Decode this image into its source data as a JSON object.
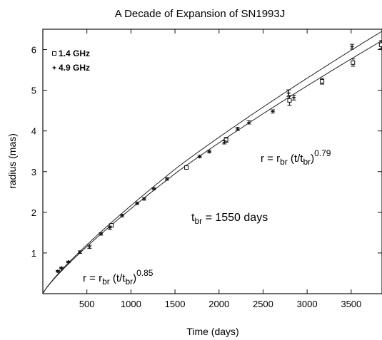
{
  "chart_data": {
    "type": "scatter",
    "title": "A Decade of Expansion of SN1993J",
    "xlabel": "Time (days)",
    "ylabel": "radius (mas)",
    "xlim": [
      0,
      3850
    ],
    "ylim": [
      0,
      6.5
    ],
    "x_ticks": [
      500,
      1000,
      1500,
      2000,
      2500,
      3000,
      3500
    ],
    "y_ticks": [
      1,
      2,
      3,
      4,
      5,
      6
    ],
    "grid": false,
    "legend_position": "top-left",
    "series": [
      {
        "name": "1.4 GHz",
        "marker": "open-square",
        "points": [
          {
            "x": 780,
            "y": 1.68,
            "err": 0.04
          },
          {
            "x": 1630,
            "y": 3.1,
            "err": 0.03
          },
          {
            "x": 2080,
            "y": 3.78,
            "err": 0.06
          },
          {
            "x": 2800,
            "y": 4.75,
            "err": 0.12
          },
          {
            "x": 3170,
            "y": 5.22,
            "err": 0.07
          },
          {
            "x": 3520,
            "y": 5.68,
            "err": 0.09
          },
          {
            "x": 3840,
            "y": 6.12,
            "err": 0.1
          }
        ]
      },
      {
        "name": "4.9 GHz",
        "marker": "plus",
        "points": [
          {
            "x": 170,
            "y": 0.55,
            "err": 0.02
          },
          {
            "x": 210,
            "y": 0.63,
            "err": 0.02
          },
          {
            "x": 290,
            "y": 0.78,
            "err": 0.02
          },
          {
            "x": 420,
            "y": 1.02,
            "err": 0.03
          },
          {
            "x": 530,
            "y": 1.15,
            "err": 0.04
          },
          {
            "x": 660,
            "y": 1.47,
            "err": 0.03
          },
          {
            "x": 760,
            "y": 1.62,
            "err": 0.04
          },
          {
            "x": 900,
            "y": 1.92,
            "err": 0.03
          },
          {
            "x": 1070,
            "y": 2.22,
            "err": 0.03
          },
          {
            "x": 1150,
            "y": 2.33,
            "err": 0.03
          },
          {
            "x": 1260,
            "y": 2.58,
            "err": 0.03
          },
          {
            "x": 1410,
            "y": 2.82,
            "err": 0.03
          },
          {
            "x": 1780,
            "y": 3.37,
            "err": 0.03
          },
          {
            "x": 1890,
            "y": 3.49,
            "err": 0.03
          },
          {
            "x": 2060,
            "y": 3.72,
            "err": 0.04
          },
          {
            "x": 2210,
            "y": 4.05,
            "err": 0.04
          },
          {
            "x": 2340,
            "y": 4.21,
            "err": 0.04
          },
          {
            "x": 2610,
            "y": 4.48,
            "err": 0.04
          },
          {
            "x": 2790,
            "y": 4.93,
            "err": 0.08
          },
          {
            "x": 2850,
            "y": 4.82,
            "err": 0.06
          },
          {
            "x": 3510,
            "y": 6.07,
            "err": 0.06
          }
        ]
      }
    ],
    "fit_curves": [
      {
        "t_br": 1550,
        "exponent_before": 0.85,
        "exponent_after": 0.79,
        "x_end": 3850,
        "y_end": 6.45
      },
      {
        "t_br": 1550,
        "exponent_before": 0.85,
        "exponent_after": 0.79,
        "x_end": 3850,
        "y_end": 6.22
      }
    ],
    "annotations": [
      {
        "id": "break",
        "base": "t",
        "base_sub": "br",
        "rest": " = 1550 days"
      },
      {
        "id": "law-before",
        "lhs": "r = r",
        "sub1": "br",
        "mid": " (t/t",
        "sub2": "br",
        "close": ")",
        "sup": "0.85"
      },
      {
        "id": "law-after",
        "lhs": "r = r",
        "sub1": "br",
        "mid": " (t/t",
        "sub2": "br",
        "close": ")",
        "sup": "0.79"
      }
    ]
  }
}
